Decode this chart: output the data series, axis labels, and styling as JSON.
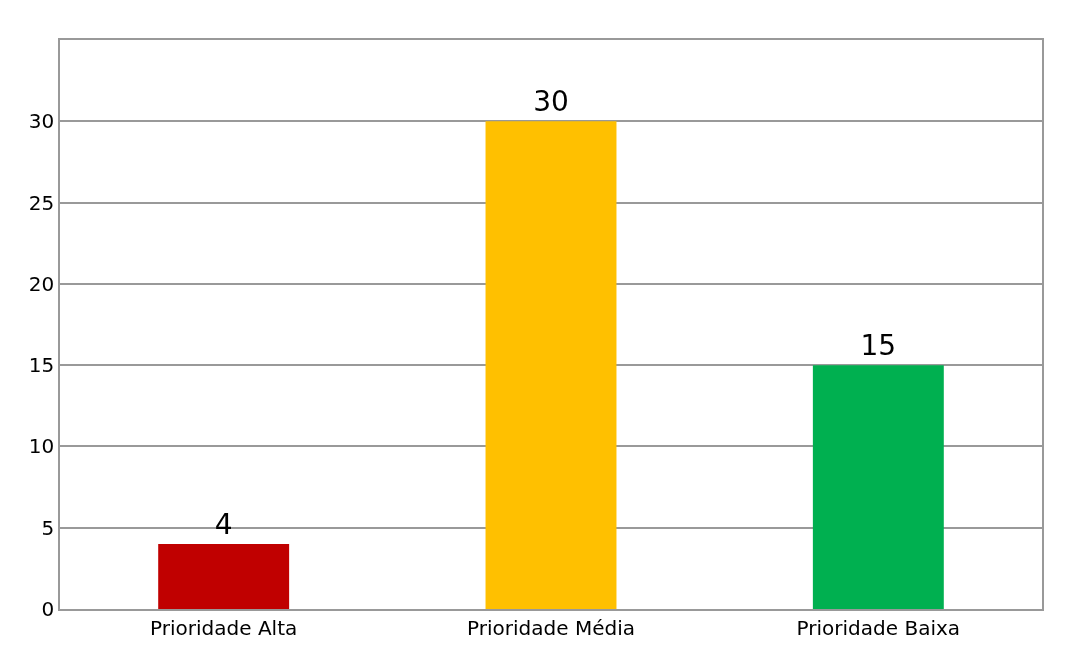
{
  "chart_data": {
    "type": "bar",
    "categories": [
      "Prioridade Alta",
      "Prioridade Média",
      "Prioridade Baixa"
    ],
    "values": [
      4,
      30,
      15
    ],
    "colors": [
      "#c00000",
      "#ffc000",
      "#00b050"
    ],
    "ylim": [
      0,
      35
    ],
    "yticks": [
      0,
      5,
      10,
      15,
      20,
      25,
      30,
      {
        "value": 35,
        "label": null
      }
    ],
    "grid": "y",
    "data_labels": true
  }
}
